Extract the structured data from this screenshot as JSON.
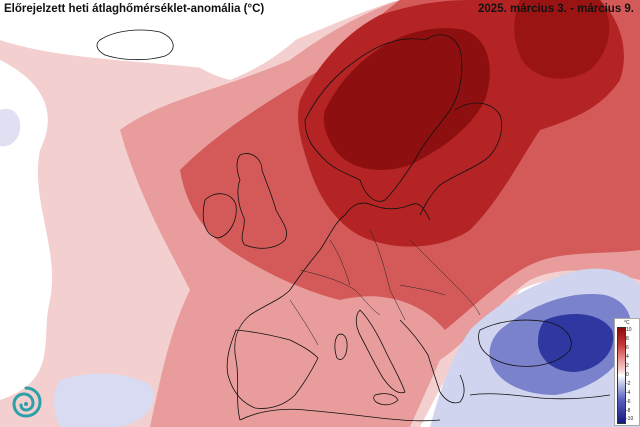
{
  "header": {
    "title": "Előrejelzett heti átlaghőmérséklet-anomália (°C)",
    "date_range": "2025. március 3. - március 9."
  },
  "legend": {
    "unit": "°C",
    "ticks": [
      "10",
      "8",
      "6",
      "4",
      "2",
      "0",
      "-2",
      "-4",
      "-6",
      "-8",
      "-10"
    ],
    "colors": {
      "dark_red": "#8b0a0a",
      "red": "#c93a3a",
      "light_red": "#e88f8f",
      "pale_red": "#f6d3d3",
      "neutral": "#ffffff",
      "pale_blue": "#d3d7f0",
      "blue": "#5a63c0",
      "dark_blue": "#12197a"
    }
  },
  "logo": {
    "icon": "swirl-logo-icon"
  }
}
